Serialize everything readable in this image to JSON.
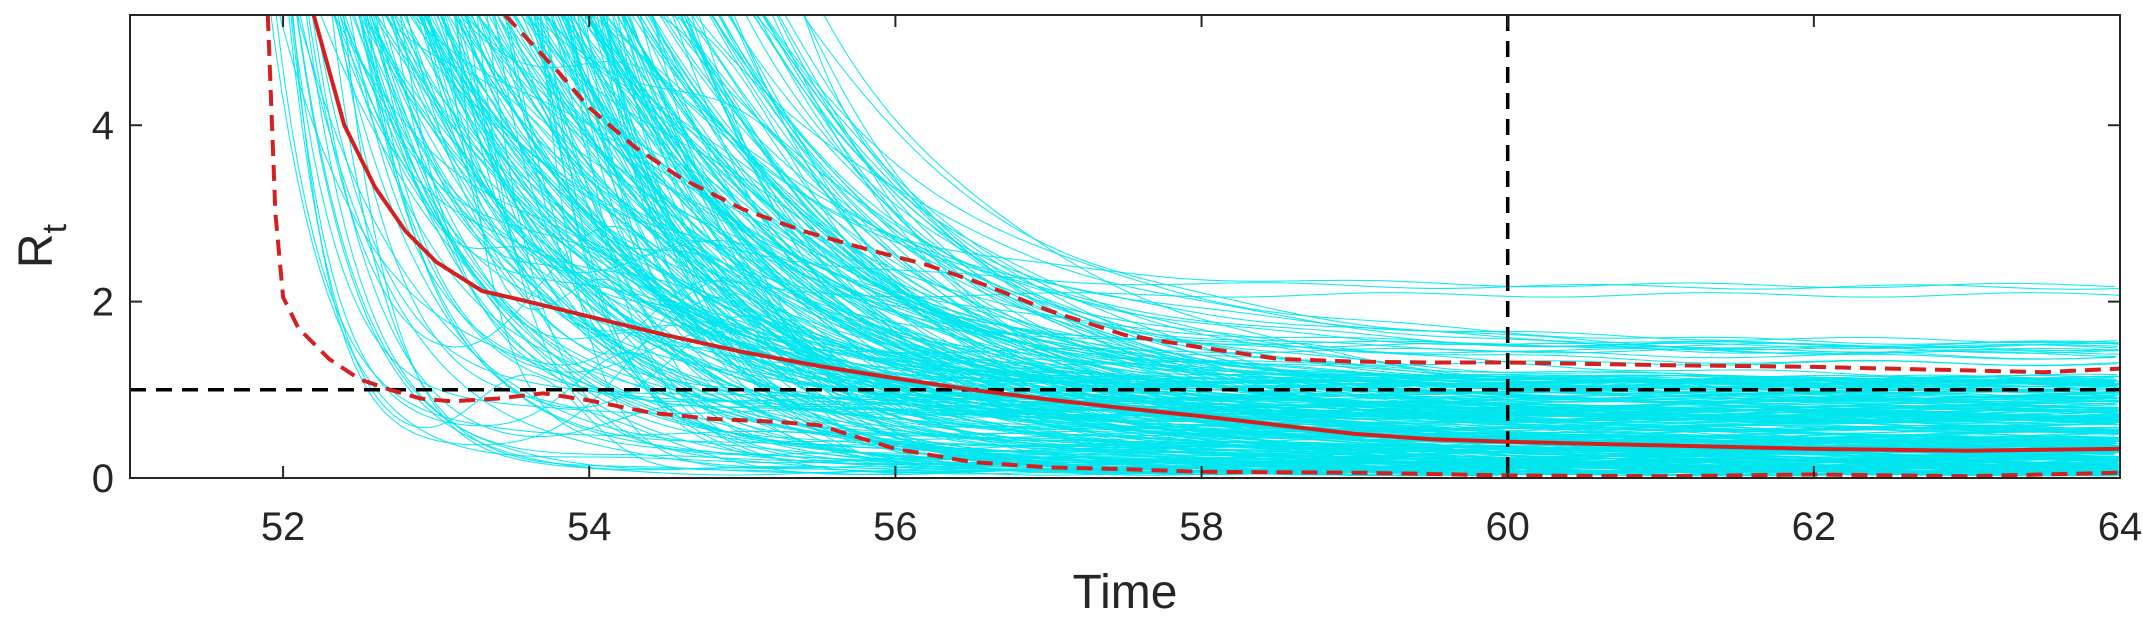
{
  "chart_data": {
    "type": "line",
    "title": "",
    "xlabel": "Time",
    "ylabel": {
      "main": "R",
      "subscript": "t"
    },
    "xlim": [
      51,
      64
    ],
    "ylim": [
      0,
      5.25
    ],
    "xticks": [
      52,
      54,
      56,
      58,
      60,
      62,
      64
    ],
    "yticks": [
      0,
      2,
      4
    ],
    "grid": false,
    "legend": "none",
    "colors": {
      "ensemble": "#00e5ee",
      "median": "#d62020",
      "bounds": "#d62020",
      "reference": "#000000",
      "axes": "#262626"
    },
    "reference_lines": [
      {
        "orientation": "horizontal",
        "value": 1,
        "style": "dashed",
        "color": "#000000"
      },
      {
        "orientation": "vertical",
        "value": 60,
        "style": "dashed",
        "color": "#000000"
      }
    ],
    "ensemble": {
      "count": 300,
      "style": "thin solid",
      "color": "#00e5ee"
    },
    "series": [
      {
        "role": "median",
        "style": "solid",
        "x": [
          52.2,
          52.4,
          52.6,
          52.8,
          53.0,
          53.3,
          53.6,
          54.0,
          54.5,
          55.0,
          55.5,
          56.0,
          56.5,
          57.0,
          57.5,
          58.0,
          58.5,
          59.0,
          59.5,
          60.0,
          60.5,
          61.0,
          61.5,
          62.0,
          62.5,
          63.0,
          63.5,
          64.0
        ],
        "y": [
          5.25,
          4.0,
          3.3,
          2.8,
          2.45,
          2.12,
          2.0,
          1.83,
          1.62,
          1.43,
          1.27,
          1.13,
          1.0,
          0.89,
          0.79,
          0.7,
          0.6,
          0.5,
          0.44,
          0.41,
          0.39,
          0.37,
          0.35,
          0.33,
          0.32,
          0.31,
          0.32,
          0.33
        ]
      },
      {
        "role": "upper-bound",
        "style": "dashed",
        "x": [
          53.45,
          53.8,
          54.0,
          54.3,
          54.6,
          55.0,
          55.4,
          55.8,
          56.2,
          56.6,
          57.0,
          57.5,
          58.0,
          58.5,
          59.0,
          59.5,
          60.0,
          61.0,
          62.0,
          63.0,
          63.5,
          64.0
        ],
        "y": [
          5.25,
          4.6,
          4.2,
          3.75,
          3.4,
          3.05,
          2.8,
          2.6,
          2.42,
          2.18,
          1.9,
          1.62,
          1.48,
          1.35,
          1.32,
          1.31,
          1.31,
          1.28,
          1.26,
          1.22,
          1.2,
          1.24
        ]
      },
      {
        "role": "lower-bound",
        "style": "dashed",
        "x": [
          51.9,
          51.95,
          52.0,
          52.1,
          52.3,
          52.5,
          52.7,
          52.9,
          53.1,
          53.4,
          53.7,
          54.0,
          54.4,
          54.8,
          55.2,
          55.5,
          56.0,
          56.5,
          57.0,
          57.5,
          58.0,
          59.0,
          60.0,
          61.0,
          62.0,
          63.0,
          64.0
        ],
        "y": [
          5.25,
          3.0,
          2.05,
          1.7,
          1.35,
          1.12,
          1.0,
          0.9,
          0.87,
          0.9,
          0.96,
          0.88,
          0.74,
          0.67,
          0.64,
          0.6,
          0.33,
          0.18,
          0.12,
          0.1,
          0.07,
          0.06,
          0.03,
          0.02,
          0.04,
          0.02,
          0.06
        ]
      }
    ]
  }
}
